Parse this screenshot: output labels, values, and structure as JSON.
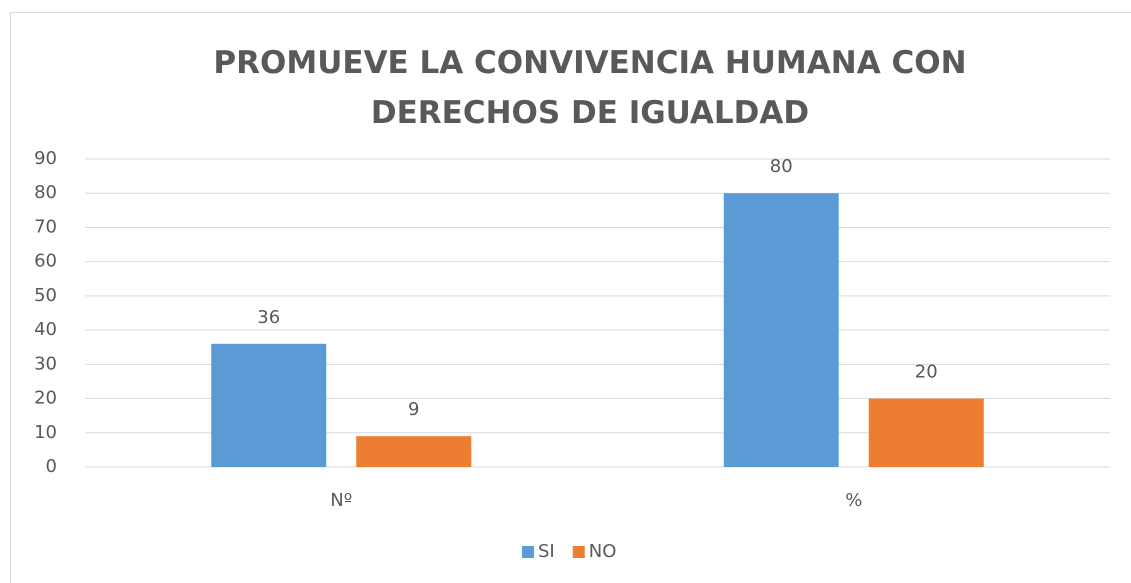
{
  "chart_data": {
    "type": "bar",
    "title": "PROMUEVE LA CONVIVENCIA HUMANA CON DERECHOS DE IGUALDAD",
    "categories": [
      "Nº",
      "%"
    ],
    "series": [
      {
        "name": "SI",
        "color": "#5b9bd5",
        "values": [
          36,
          80
        ]
      },
      {
        "name": "NO",
        "color": "#ed7d31",
        "values": [
          9,
          20
        ]
      }
    ],
    "ylim": [
      0,
      90
    ],
    "yticks": [
      0,
      10,
      20,
      30,
      40,
      50,
      60,
      70,
      80,
      90
    ],
    "grid": true,
    "legend": "bottom"
  }
}
